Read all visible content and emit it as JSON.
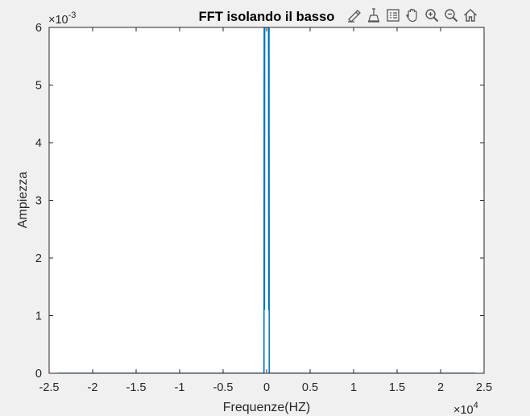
{
  "chart_data": {
    "type": "line",
    "title": "FFT isolando il basso",
    "xlabel": "Frequenze(HZ)",
    "ylabel": "Ampiezza",
    "x_exponent": "10",
    "x_exponent_power": "4",
    "y_exponent": "10",
    "y_exponent_power": "-3",
    "xlim": [
      -2.5,
      2.5
    ],
    "ylim": [
      0,
      6
    ],
    "xticks": [
      "-2.5",
      "-2",
      "-1.5",
      "-1",
      "-0.5",
      "0",
      "0.5",
      "1",
      "1.5",
      "2",
      "2.5"
    ],
    "yticks": [
      "0",
      "1",
      "2",
      "3",
      "4",
      "5",
      "6"
    ],
    "series": [
      {
        "color": "#0072BD",
        "x": [
          -2.4,
          -0.03,
          -0.028,
          -0.024,
          -0.023,
          -0.022,
          -0.021,
          -0.01,
          0.0,
          0.01,
          0.021,
          0.022,
          0.023,
          0.024,
          0.028,
          0.03,
          2.4
        ],
        "y": [
          0,
          0,
          6.5,
          1.1,
          3.3,
          5.3,
          6.5,
          6.5,
          6.5,
          6.5,
          6.5,
          5.3,
          3.3,
          1.1,
          6.5,
          0,
          0
        ]
      }
    ]
  },
  "toolbar": [
    "brush-icon",
    "data-tips-icon",
    "legend-icon",
    "pan-icon",
    "zoom-in-icon",
    "zoom-out-icon",
    "home-icon"
  ]
}
